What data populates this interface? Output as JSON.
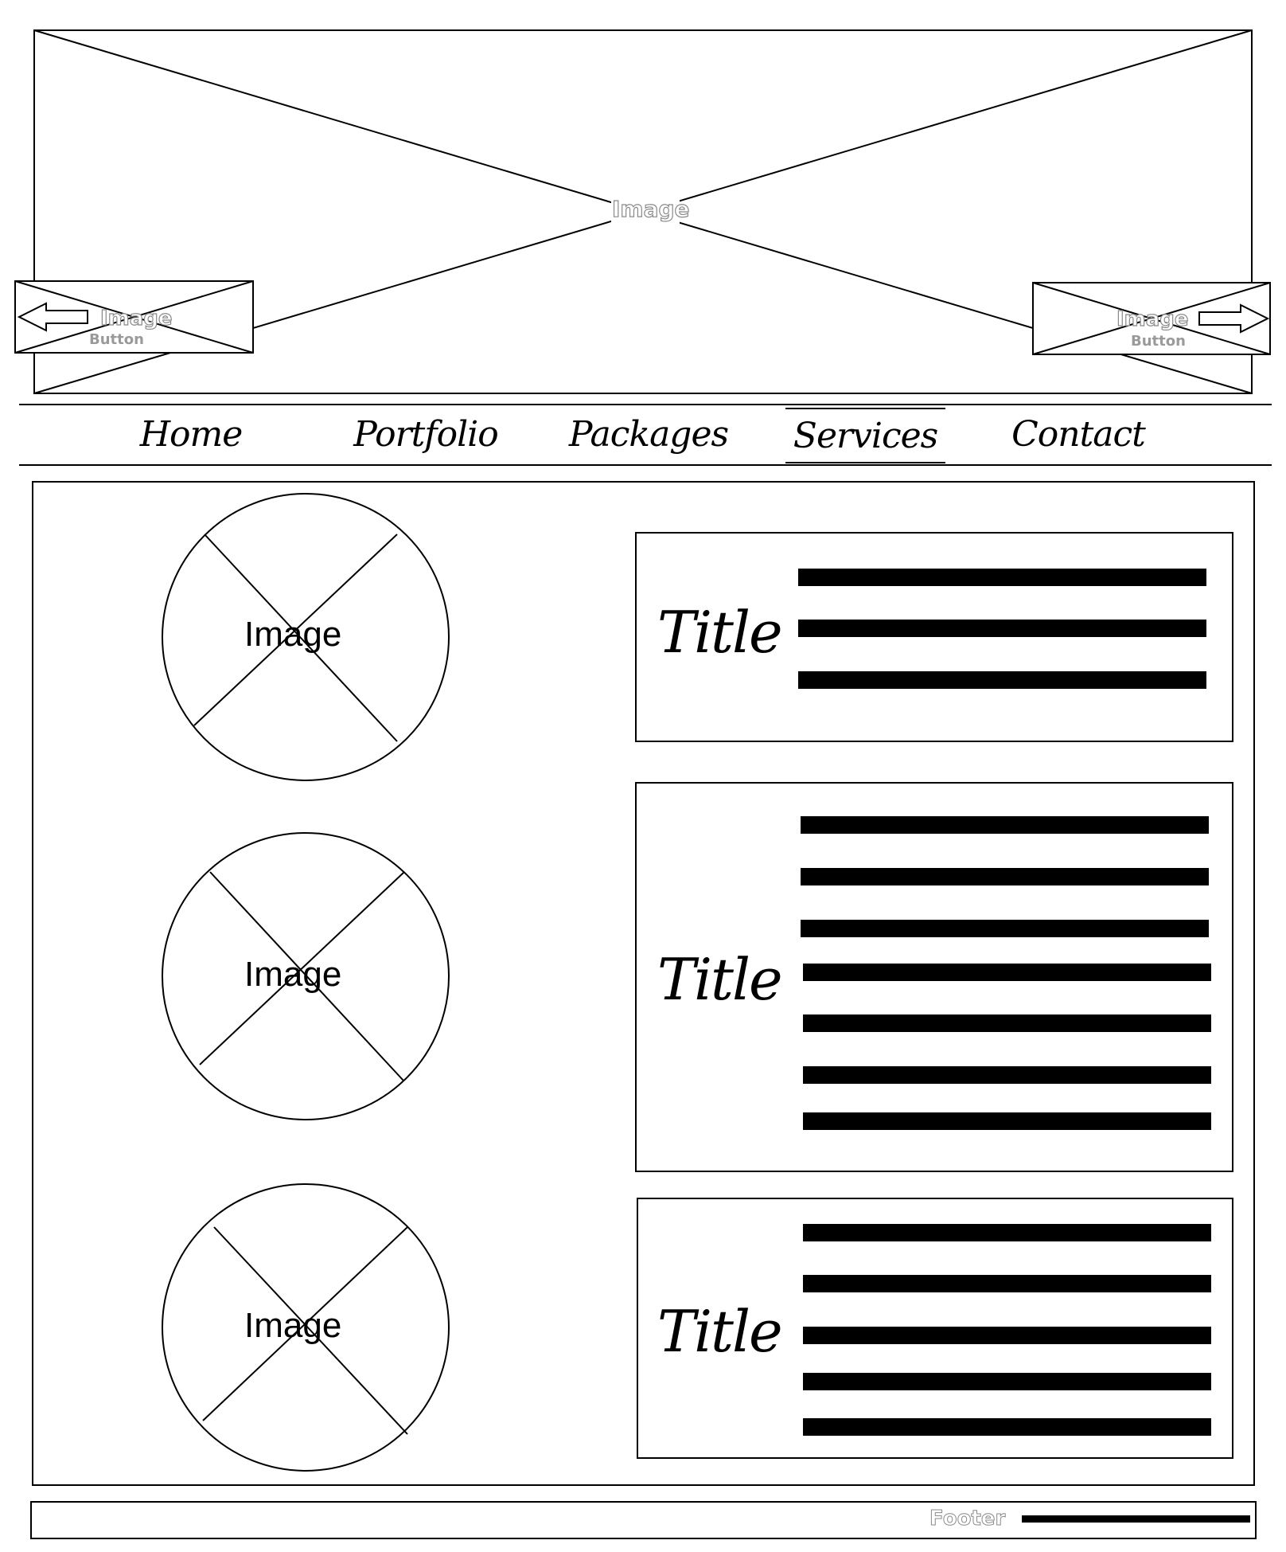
{
  "hero": {
    "label": "Image",
    "prev_button": {
      "label": "Image",
      "sub": "Button",
      "icon": "arrow-left-icon"
    },
    "next_button": {
      "label": "Image",
      "sub": "Button",
      "icon": "arrow-right-icon"
    }
  },
  "nav": {
    "items": [
      {
        "label": "Home"
      },
      {
        "label": "Portfolio"
      },
      {
        "label": "Packages"
      },
      {
        "label": "Services"
      },
      {
        "label": "Contact"
      }
    ],
    "active": "Services"
  },
  "content": {
    "rows": [
      {
        "image_label": "Image",
        "title": "Title",
        "text_lines": 3
      },
      {
        "image_label": "Image",
        "title": "Title",
        "text_lines": 7
      },
      {
        "image_label": "Image",
        "title": "Title",
        "text_lines": 5
      }
    ]
  },
  "footer": {
    "label": "Footer"
  }
}
